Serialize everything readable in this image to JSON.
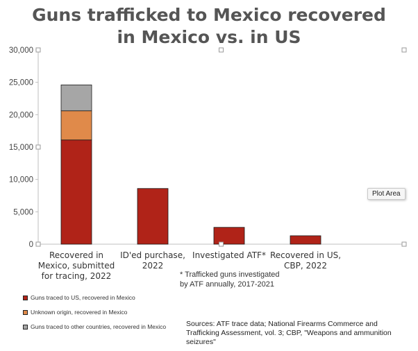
{
  "title_lines": [
    "Guns trafficked to Mexico recovered",
    "in Mexico vs. in US"
  ],
  "colors": {
    "us_mexico": "#b02318",
    "unknown": "#e08a4a",
    "other": "#a6a6a6",
    "axis": "#bfbfbf"
  },
  "footnote": "* Trafficked guns investigated by ATF annually, 2017-2021",
  "tooltip": "Plot Area",
  "sources": "Sources: ATF trace data; National  Firearms Commerce and Trafficking Assessment, vol. 3; CBP, \"Weapons and ammunition seizures\"",
  "chart_data": {
    "type": "bar",
    "stacked": true,
    "title": "Guns trafficked to Mexico recovered in Mexico vs. in US",
    "xlabel": "",
    "ylabel": "",
    "ylim": [
      0,
      30000
    ],
    "yticks": [
      0,
      5000,
      10000,
      15000,
      20000,
      25000,
      30000
    ],
    "ytick_labels": [
      "0",
      "5,000",
      "10,000",
      "15,000",
      "20,000",
      "25,000",
      "30,000"
    ],
    "grid": false,
    "legend_position": "bottom-left",
    "categories": [
      "Recovered in Mexico, submitted for tracing, 2022",
      "ID'ed purchase, 2022",
      "Investigated ATF*",
      "Recovered in US, CBP, 2022"
    ],
    "category_lines": [
      [
        "Recovered in",
        "Mexico, submitted",
        "for tracing, 2022"
      ],
      [
        "ID'ed purchase, 2022"
      ],
      [
        "Investigated ATF*"
      ],
      [
        "Recovered in US,",
        "CBP, 2022"
      ]
    ],
    "series": [
      {
        "name": "Guns traced to US, recovered in Mexico",
        "values": [
          16100,
          8600,
          2600,
          1300
        ],
        "color": "#b02318"
      },
      {
        "name": "Unknown origin, recovered in Mexico",
        "values": [
          4500,
          0,
          0,
          0
        ],
        "color": "#e08a4a"
      },
      {
        "name": "Guns traced to other countries, recovered in Mexico",
        "values": [
          4000,
          0,
          0,
          0
        ],
        "color": "#a6a6a6"
      }
    ]
  }
}
